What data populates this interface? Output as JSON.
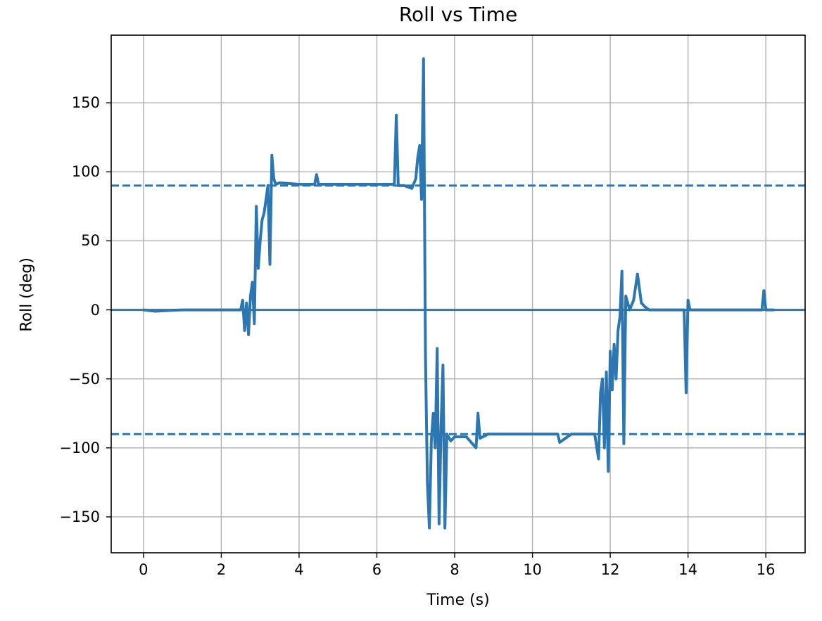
{
  "chart_data": {
    "type": "line",
    "title": "Roll vs Time",
    "xlabel": "Time (s)",
    "ylabel": "Roll (deg)",
    "xlim": [
      -0.83,
      17.01
    ],
    "ylim": [
      -176,
      199
    ],
    "grid": true,
    "legend": null,
    "xticks": [
      0,
      2,
      4,
      6,
      8,
      10,
      12,
      14,
      16
    ],
    "yticks": [
      150,
      100,
      50,
      0,
      -50,
      -100,
      -150
    ],
    "ytick_labels": [
      "150",
      "100",
      "50",
      "0",
      "−50",
      "−100",
      "−150"
    ],
    "reference_lines": [
      {
        "y": 90,
        "style": "dashed",
        "color": "#2c77b1"
      },
      {
        "y": 0,
        "style": "solid",
        "color": "#2c77b1"
      },
      {
        "y": -90,
        "style": "dashed",
        "color": "#2c77b1"
      }
    ],
    "series": [
      {
        "name": "Roll",
        "color": "#2c77b1",
        "x": [
          0.0,
          0.3,
          1.0,
          2.0,
          2.5,
          2.55,
          2.6,
          2.65,
          2.7,
          2.75,
          2.8,
          2.85,
          2.9,
          2.95,
          3.0,
          3.05,
          3.1,
          3.15,
          3.2,
          3.25,
          3.3,
          3.35,
          3.4,
          3.5,
          4.0,
          4.4,
          4.45,
          4.5,
          5.0,
          6.0,
          6.45,
          6.5,
          6.55,
          6.7,
          6.9,
          7.0,
          7.05,
          7.1,
          7.15,
          7.2,
          7.25,
          7.3,
          7.35,
          7.4,
          7.45,
          7.5,
          7.55,
          7.6,
          7.65,
          7.7,
          7.75,
          7.8,
          7.9,
          8.0,
          8.3,
          8.55,
          8.6,
          8.65,
          8.8,
          8.85,
          9.0,
          10.0,
          10.65,
          10.7,
          11.0,
          11.6,
          11.7,
          11.75,
          11.8,
          11.85,
          11.9,
          11.95,
          12.0,
          12.05,
          12.1,
          12.15,
          12.2,
          12.25,
          12.3,
          12.35,
          12.4,
          12.45,
          12.5,
          12.6,
          12.7,
          12.8,
          12.9,
          13.0,
          13.5,
          13.9,
          13.95,
          14.0,
          14.05,
          14.5,
          15.0,
          15.9,
          15.95,
          16.0,
          16.2
        ],
        "y": [
          0,
          -1,
          0,
          0,
          0,
          7,
          -15,
          5,
          -18,
          10,
          20,
          -10,
          75,
          30,
          50,
          65,
          70,
          80,
          90,
          33,
          112,
          95,
          91,
          92,
          91,
          91,
          98,
          91,
          91,
          91,
          91,
          141,
          90,
          90,
          88,
          95,
          110,
          119,
          80,
          182,
          -35,
          -125,
          -158,
          -95,
          -75,
          -100,
          -28,
          -155,
          -85,
          -40,
          -158,
          -90,
          -95,
          -92,
          -92,
          -100,
          -75,
          -93,
          -91,
          -90,
          -90,
          -90,
          -90,
          -96,
          -90,
          -90,
          -108,
          -60,
          -50,
          -100,
          -45,
          -117,
          -30,
          -58,
          -25,
          -50,
          -15,
          -5,
          28,
          -97,
          10,
          5,
          0,
          7,
          26,
          5,
          2,
          0,
          0,
          0,
          -60,
          7,
          0,
          0,
          0,
          0,
          14,
          0,
          0
        ]
      }
    ]
  }
}
